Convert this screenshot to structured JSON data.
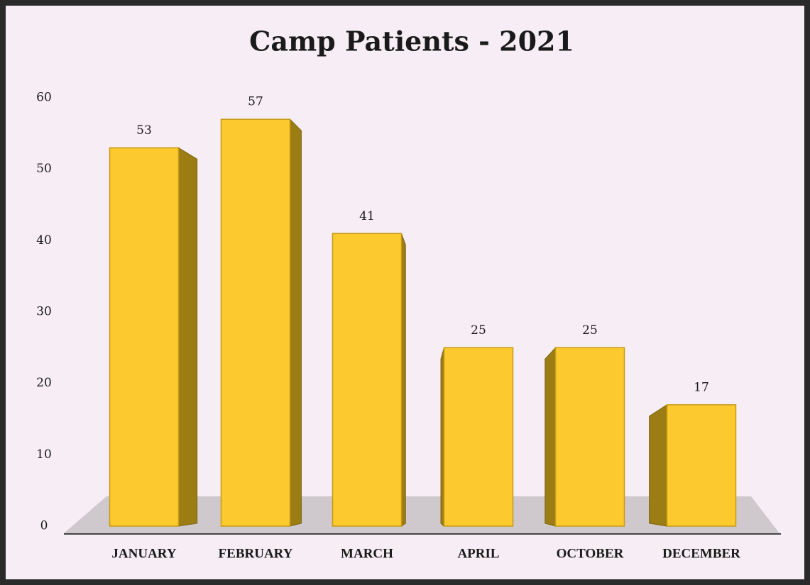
{
  "chart_data": {
    "type": "bar",
    "title": "Camp Patients -  2021",
    "categories": [
      "JANUARY",
      "FEBRUARY",
      "MARCH",
      "APRIL",
      "OCTOBER",
      "DECEMBER"
    ],
    "values": [
      53,
      57,
      41,
      25,
      25,
      17
    ],
    "color": "#fcc92e",
    "ylim": [
      0,
      60
    ],
    "yticks": [
      0,
      10,
      20,
      30,
      40,
      50,
      60
    ],
    "grid": false
  }
}
